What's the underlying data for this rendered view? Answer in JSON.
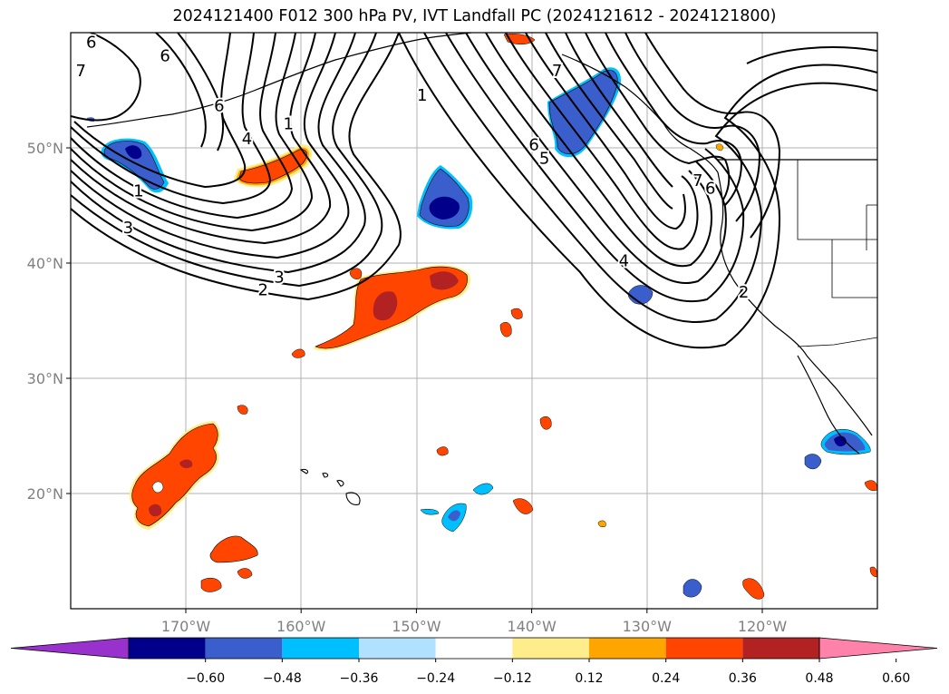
{
  "title": "2024121400 F012 300 hPa PV, IVT Landfall PC (2024121612 - 2024121800)",
  "map": {
    "lon_labels": [
      {
        "lon": -170,
        "label": "170°W"
      },
      {
        "lon": -160,
        "label": "160°W"
      },
      {
        "lon": -150,
        "label": "150°W"
      },
      {
        "lon": -140,
        "label": "140°W"
      },
      {
        "lon": -130,
        "label": "130°W"
      },
      {
        "lon": -120,
        "label": "120°W"
      }
    ],
    "lat_labels": [
      {
        "lat": 50,
        "label": "50°N"
      },
      {
        "lat": 40,
        "label": "40°N"
      },
      {
        "lat": 30,
        "label": "30°N"
      },
      {
        "lat": 20,
        "label": "20°N"
      }
    ],
    "contour_labels": [
      {
        "text": "6",
        "lon": -178.2,
        "lat": 59.1
      },
      {
        "text": "6",
        "lon": -171.8,
        "lat": 57.9
      },
      {
        "text": "7",
        "lon": -179.1,
        "lat": 56.6
      },
      {
        "text": "6",
        "lon": -167.1,
        "lat": 53.6
      },
      {
        "text": "1",
        "lon": -161.1,
        "lat": 52.0
      },
      {
        "text": "4",
        "lon": -164.7,
        "lat": 50.7
      },
      {
        "text": "1",
        "lon": -174.1,
        "lat": 46.2
      },
      {
        "text": "3",
        "lon": -175.0,
        "lat": 43.0
      },
      {
        "text": "3",
        "lon": -161.9,
        "lat": 38.7
      },
      {
        "text": "2",
        "lon": -163.3,
        "lat": 37.6
      },
      {
        "text": "1",
        "lon": -149.5,
        "lat": 54.5
      },
      {
        "text": "6",
        "lon": -139.8,
        "lat": 50.2
      },
      {
        "text": "5",
        "lon": -138.9,
        "lat": 49.0
      },
      {
        "text": "7",
        "lon": -137.8,
        "lat": 56.6
      },
      {
        "text": "4",
        "lon": -132.0,
        "lat": 40.1
      },
      {
        "text": "7",
        "lon": -125.6,
        "lat": 47.1
      },
      {
        "text": "6",
        "lon": -124.5,
        "lat": 46.4
      },
      {
        "text": "2",
        "lon": -121.6,
        "lat": 37.4
      }
    ]
  },
  "colorbar": {
    "colors": [
      "#9932cc",
      "#00008b",
      "#3a5fcd",
      "#00bfff",
      "#b0e2ff",
      "#ffffff",
      "#ffec8b",
      "#ffa500",
      "#ff4500",
      "#b22222",
      "#ff82ab"
    ],
    "tick_labels": [
      "−0.60",
      "−0.48",
      "−0.36",
      "−0.24",
      "−0.12",
      "0.12",
      "0.24",
      "0.36",
      "0.48",
      "0.60"
    ]
  }
}
